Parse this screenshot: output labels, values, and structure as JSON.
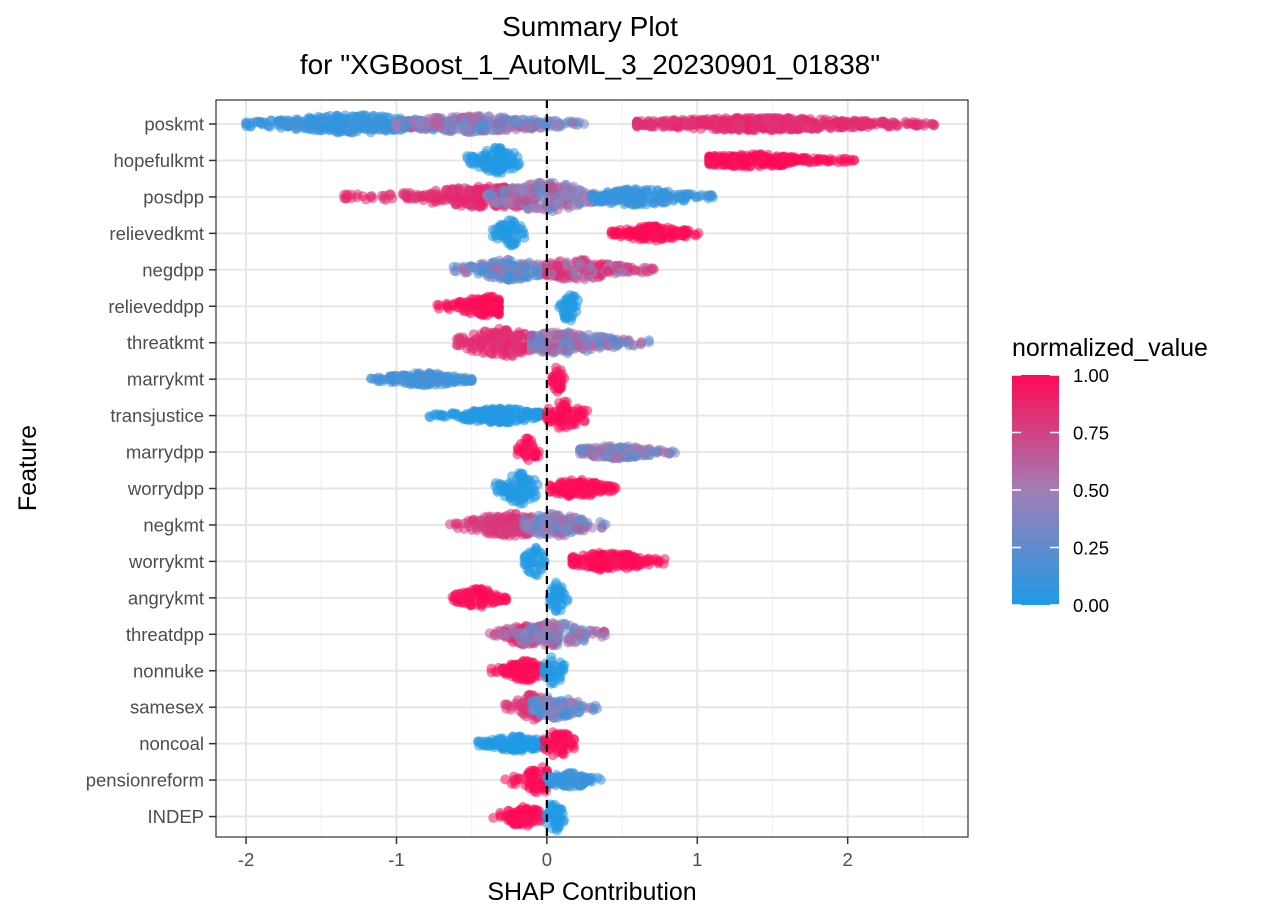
{
  "chart_data": {
    "type": "scatter",
    "subtype": "beeswarm",
    "title_line1": "Summary Plot",
    "title_line2": "for \"XGBoost_1_AutoML_3_20230901_01838\"",
    "xlabel": "SHAP Contribution",
    "ylabel": "Feature",
    "xlim": [
      -2.2,
      2.8
    ],
    "x_ticks": [
      -2,
      -1,
      0,
      1,
      2
    ],
    "x_tick_labels": [
      "-2",
      "-1",
      "0",
      "1",
      "2"
    ],
    "reference_line_x": 0,
    "grid": true,
    "legend": {
      "title": "normalized_value",
      "position": "right",
      "ticks": [
        1.0,
        0.75,
        0.5,
        0.25,
        0.0
      ],
      "tick_labels": [
        "1.00",
        "0.75",
        "0.50",
        "0.25",
        "0.00"
      ],
      "color_low": "#1E9AE6",
      "color_mid": "#A07EB5",
      "color_high": "#FF0A55"
    },
    "features": [
      {
        "name": "poskmt",
        "clusters": [
          {
            "min": -2.0,
            "max": -0.8,
            "center": -1.3,
            "width": 0.5,
            "value": 0.1
          },
          {
            "min": -1.0,
            "max": 0.25,
            "center": -0.5,
            "width": 0.45,
            "value": 0.4
          },
          {
            "min": 0.6,
            "max": 2.6,
            "center": 1.4,
            "width": 0.35,
            "value": 0.85
          }
        ]
      },
      {
        "name": "hopefulkmt",
        "clusters": [
          {
            "min": -0.58,
            "max": -0.18,
            "center": -0.33,
            "width": 0.7,
            "value": 0.0
          },
          {
            "min": 1.08,
            "max": 2.07,
            "center": 1.35,
            "width": 0.35,
            "value": 1.0
          }
        ]
      },
      {
        "name": "posdpp",
        "clusters": [
          {
            "min": -1.35,
            "max": -0.1,
            "center": -0.35,
            "width": 0.6,
            "value": 0.85
          },
          {
            "min": -0.4,
            "max": 0.4,
            "center": 0.0,
            "width": 0.8,
            "value": 0.5
          },
          {
            "min": 0.3,
            "max": 1.12,
            "center": 0.6,
            "width": 0.45,
            "value": 0.1
          }
        ]
      },
      {
        "name": "relievedkmt",
        "clusters": [
          {
            "min": -0.38,
            "max": -0.15,
            "center": -0.25,
            "width": 0.75,
            "value": 0.0
          },
          {
            "min": 0.43,
            "max": 1.02,
            "center": 0.7,
            "width": 0.4,
            "value": 1.0
          }
        ]
      },
      {
        "name": "negdpp",
        "clusters": [
          {
            "min": -0.63,
            "max": 0.0,
            "center": -0.25,
            "width": 0.55,
            "value": 0.3
          },
          {
            "min": 0.0,
            "max": 0.73,
            "center": 0.2,
            "width": 0.55,
            "value": 0.7
          }
        ]
      },
      {
        "name": "relieveddpp",
        "clusters": [
          {
            "min": -0.76,
            "max": -0.32,
            "center": -0.4,
            "width": 0.55,
            "value": 1.0
          },
          {
            "min": 0.07,
            "max": 0.22,
            "center": 0.15,
            "width": 0.85,
            "value": 0.0
          }
        ]
      },
      {
        "name": "threatkmt",
        "clusters": [
          {
            "min": -0.6,
            "max": 0.0,
            "center": -0.3,
            "width": 0.8,
            "value": 0.85
          },
          {
            "min": -0.1,
            "max": 0.7,
            "center": 0.1,
            "width": 0.6,
            "value": 0.45
          }
        ]
      },
      {
        "name": "marrykmt",
        "clusters": [
          {
            "min": -1.17,
            "max": -0.5,
            "center": -0.8,
            "width": 0.35,
            "value": 0.15
          },
          {
            "min": 0.03,
            "max": 0.12,
            "center": 0.07,
            "width": 0.75,
            "value": 1.0
          }
        ]
      },
      {
        "name": "transjustice",
        "clusters": [
          {
            "min": -0.8,
            "max": -0.05,
            "center": -0.3,
            "width": 0.4,
            "value": 0.0
          },
          {
            "min": 0.0,
            "max": 0.3,
            "center": 0.12,
            "width": 0.8,
            "value": 1.0
          }
        ]
      },
      {
        "name": "marrydpp",
        "clusters": [
          {
            "min": -0.2,
            "max": -0.05,
            "center": -0.13,
            "width": 0.8,
            "value": 1.0
          },
          {
            "min": 0.22,
            "max": 0.86,
            "center": 0.45,
            "width": 0.35,
            "value": 0.4
          }
        ]
      },
      {
        "name": "worrydpp",
        "clusters": [
          {
            "min": -0.38,
            "max": -0.05,
            "center": -0.18,
            "width": 0.85,
            "value": 0.0
          },
          {
            "min": 0.02,
            "max": 0.47,
            "center": 0.2,
            "width": 0.5,
            "value": 1.0
          }
        ]
      },
      {
        "name": "negkmt",
        "clusters": [
          {
            "min": -0.65,
            "max": -0.05,
            "center": -0.25,
            "width": 0.65,
            "value": 0.8
          },
          {
            "min": -0.15,
            "max": 0.4,
            "center": 0.05,
            "width": 0.65,
            "value": 0.4
          }
        ]
      },
      {
        "name": "worrykmt",
        "clusters": [
          {
            "min": -0.15,
            "max": 0.0,
            "center": -0.08,
            "width": 0.85,
            "value": 0.0
          },
          {
            "min": 0.17,
            "max": 0.8,
            "center": 0.4,
            "width": 0.5,
            "value": 1.0
          }
        ]
      },
      {
        "name": "angrykmt",
        "clusters": [
          {
            "min": -0.63,
            "max": -0.27,
            "center": -0.45,
            "width": 0.5,
            "value": 1.0
          },
          {
            "min": 0.02,
            "max": 0.14,
            "center": 0.07,
            "width": 0.9,
            "value": 0.0
          }
        ]
      },
      {
        "name": "threatdpp",
        "clusters": [
          {
            "min": -0.38,
            "max": 0.0,
            "center": -0.15,
            "width": 0.6,
            "value": 0.75
          },
          {
            "min": -0.2,
            "max": 0.4,
            "center": 0.05,
            "width": 0.65,
            "value": 0.45
          }
        ]
      },
      {
        "name": "nonnuke",
        "clusters": [
          {
            "min": -0.4,
            "max": -0.05,
            "center": -0.15,
            "width": 0.55,
            "value": 1.0
          },
          {
            "min": -0.02,
            "max": 0.14,
            "center": 0.05,
            "width": 0.85,
            "value": 0.0
          }
        ]
      },
      {
        "name": "samesex",
        "clusters": [
          {
            "min": -0.28,
            "max": 0.05,
            "center": -0.1,
            "width": 0.7,
            "value": 0.8
          },
          {
            "min": -0.1,
            "max": 0.34,
            "center": 0.05,
            "width": 0.6,
            "value": 0.3
          }
        ]
      },
      {
        "name": "noncoal",
        "clusters": [
          {
            "min": -0.52,
            "max": -0.02,
            "center": -0.2,
            "width": 0.4,
            "value": 0.0
          },
          {
            "min": -0.02,
            "max": 0.2,
            "center": 0.08,
            "width": 0.85,
            "value": 1.0
          }
        ]
      },
      {
        "name": "pensionreform",
        "clusters": [
          {
            "min": -0.28,
            "max": 0.0,
            "center": -0.05,
            "width": 0.75,
            "value": 1.0
          },
          {
            "min": 0.0,
            "max": 0.37,
            "center": 0.15,
            "width": 0.4,
            "value": 0.1
          }
        ]
      },
      {
        "name": "INDEP",
        "clusters": [
          {
            "min": -0.36,
            "max": -0.02,
            "center": -0.15,
            "width": 0.55,
            "value": 1.0
          },
          {
            "min": -0.02,
            "max": 0.12,
            "center": 0.05,
            "width": 0.85,
            "value": 0.0
          }
        ]
      }
    ]
  }
}
